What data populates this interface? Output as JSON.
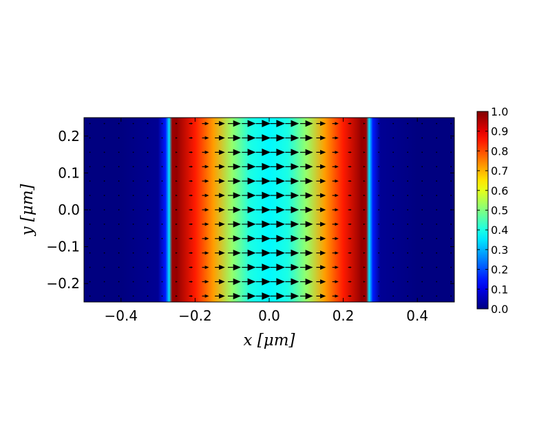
{
  "chart_data": {
    "type": "heatmap",
    "title": "",
    "xlabel": "x [μm]",
    "ylabel": "y [μm]",
    "xlim": [
      -0.5,
      0.5
    ],
    "ylim": [
      -0.25,
      0.25
    ],
    "xticks": [
      -0.4,
      -0.2,
      0.0,
      0.2,
      0.4
    ],
    "xtick_labels": [
      "−0.4",
      "−0.2",
      "0.0",
      "0.2",
      "0.4"
    ],
    "yticks": [
      -0.2,
      -0.1,
      0.0,
      0.1,
      0.2
    ],
    "ytick_labels": [
      "−0.2",
      "−0.1",
      "0.0",
      "0.1",
      "0.2"
    ],
    "colormap": "jet",
    "colorbar": {
      "vmin": 0.0,
      "vmax": 1.0,
      "ticks": [
        0.0,
        0.1,
        0.2,
        0.3,
        0.4,
        0.5,
        0.6,
        0.7,
        0.8,
        0.9,
        1.0
      ],
      "tick_labels": [
        "0.0",
        "0.1",
        "0.2",
        "0.3",
        "0.4",
        "0.5",
        "0.6",
        "0.7",
        "0.8",
        "0.9",
        "1.0"
      ]
    },
    "field_profile": {
      "x": [
        -0.5,
        -0.4,
        -0.3,
        -0.28,
        -0.27,
        -0.262,
        -0.25,
        -0.2,
        -0.15,
        -0.1,
        -0.05,
        0.0,
        0.05,
        0.1,
        0.15,
        0.2,
        0.25,
        0.262,
        0.27,
        0.28,
        0.3,
        0.4,
        0.5
      ],
      "value": [
        0.0,
        0.0,
        0.02,
        0.15,
        0.35,
        0.97,
        0.98,
        0.85,
        0.72,
        0.52,
        0.4,
        0.37,
        0.4,
        0.52,
        0.72,
        0.85,
        0.98,
        0.97,
        0.35,
        0.15,
        0.02,
        0.0,
        0.0
      ],
      "note_uniform_in": "y"
    },
    "quiver": {
      "direction": "+x",
      "grid_x": [
        -0.484,
        -0.445,
        -0.406,
        -0.367,
        -0.328,
        -0.289,
        -0.25,
        -0.211,
        -0.172,
        -0.133,
        -0.094,
        -0.055,
        -0.016,
        0.023,
        0.062,
        0.101,
        0.14,
        0.179,
        0.218,
        0.257,
        0.296,
        0.335,
        0.374,
        0.413,
        0.452,
        0.491
      ],
      "grid_y": [
        0.234,
        0.195,
        0.156,
        0.117,
        0.078,
        0.039,
        0.0,
        -0.039,
        -0.078,
        -0.117,
        -0.156,
        -0.195,
        -0.234
      ],
      "profile_x": [
        -0.5,
        -0.3,
        -0.26,
        -0.25,
        -0.2,
        -0.1,
        0.0,
        0.1,
        0.2,
        0.25,
        0.26,
        0.3,
        0.5
      ],
      "profile_magnitude": [
        0.0,
        0.02,
        0.05,
        0.12,
        0.3,
        0.85,
        1.0,
        0.85,
        0.3,
        0.12,
        0.05,
        0.02,
        0.0
      ]
    }
  }
}
